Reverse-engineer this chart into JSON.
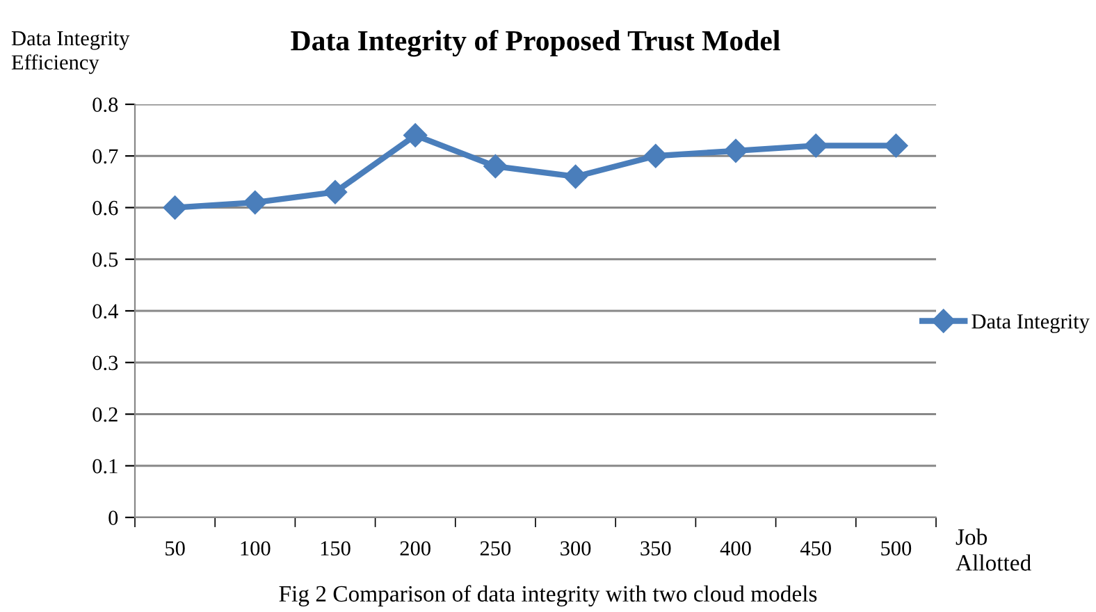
{
  "chart_data": {
    "type": "line",
    "title": "Data Integrity of Proposed Trust Model",
    "ylabel": "Data Integrity\nEfficiency",
    "xlabel": "Job\nAllotted",
    "categories": [
      "50",
      "100",
      "150",
      "200",
      "250",
      "300",
      "350",
      "400",
      "450",
      "500"
    ],
    "series": [
      {
        "name": "Data Integrity",
        "color": "#4a7ebb",
        "values": [
          0.6,
          0.61,
          0.63,
          0.74,
          0.68,
          0.66,
          0.7,
          0.71,
          0.72,
          0.72
        ]
      }
    ],
    "ylim": [
      0,
      0.8
    ],
    "yticks": [
      0,
      0.1,
      0.2,
      0.3,
      0.4,
      0.5,
      0.6,
      0.7,
      0.8
    ],
    "grid": "y",
    "legend": "right",
    "marker": "diamond",
    "line_style": "solid",
    "annotations": [
      "Fig 2 Comparison of data integrity with two cloud models"
    ]
  }
}
